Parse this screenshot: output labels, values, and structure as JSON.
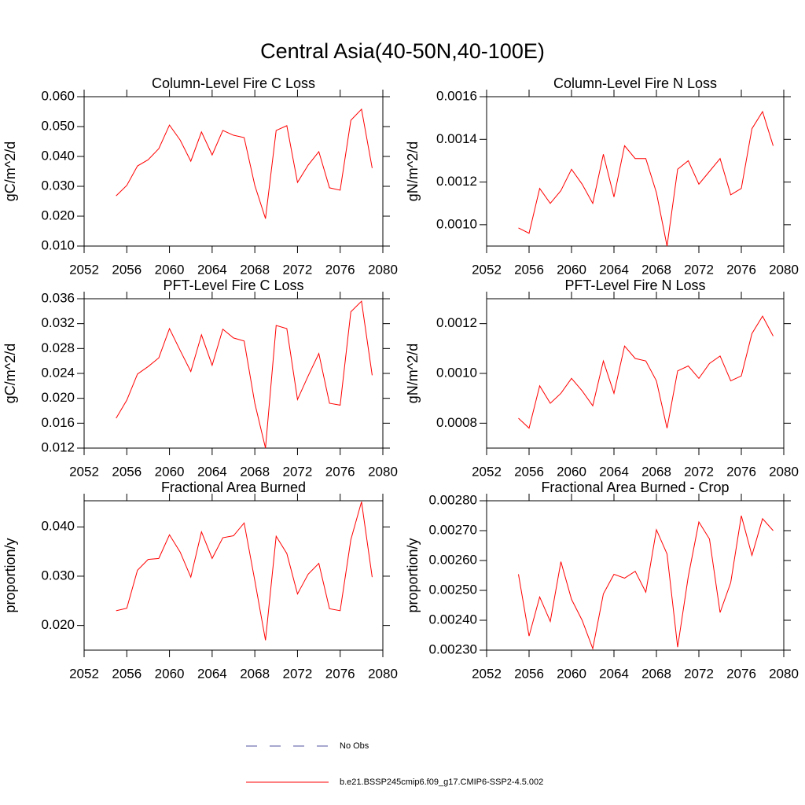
{
  "title": "Central Asia(40-50N,40-100E)",
  "legend": [
    {
      "label": "No Obs",
      "color": "#5050a0",
      "dash": true
    },
    {
      "label": "b.e21.BSSP245cmip6.f09_g17.CMIP6-SSP2-4.5.002",
      "color": "#ff0000",
      "dash": false
    }
  ],
  "chart_data": [
    {
      "type": "line",
      "title": "Column-Level Fire C Loss",
      "ylabel": "gC/m^2/d",
      "color": "#ff0000",
      "x": [
        2055,
        2056,
        2057,
        2058,
        2059,
        2060,
        2061,
        2062,
        2063,
        2064,
        2065,
        2066,
        2067,
        2068,
        2069,
        2070,
        2071,
        2072,
        2073,
        2074,
        2075,
        2076,
        2077,
        2078,
        2079
      ],
      "values": [
        0.0268,
        0.0303,
        0.0368,
        0.0389,
        0.0426,
        0.0505,
        0.0455,
        0.0384,
        0.0482,
        0.0405,
        0.0487,
        0.0471,
        0.0463,
        0.0303,
        0.0192,
        0.0487,
        0.0503,
        0.0313,
        0.0371,
        0.0416,
        0.0295,
        0.0287,
        0.0521,
        0.0558,
        0.0361
      ],
      "xlim": [
        2052,
        2080
      ],
      "xticks": [
        2052,
        2056,
        2060,
        2064,
        2068,
        2072,
        2076,
        2080
      ],
      "ylim": [
        0.01,
        0.06
      ],
      "yticks": [
        {
          "value": 0.01,
          "label": "0.010"
        },
        {
          "value": 0.02,
          "label": "0.020"
        },
        {
          "value": 0.03,
          "label": "0.030"
        },
        {
          "value": 0.04,
          "label": "0.040"
        },
        {
          "value": 0.05,
          "label": "0.050"
        },
        {
          "value": 0.06,
          "label": "0.060"
        }
      ]
    },
    {
      "type": "line",
      "title": "Column-Level Fire N Loss",
      "ylabel": "gN/m^2/d",
      "color": "#ff0000",
      "x": [
        2055,
        2056,
        2057,
        2058,
        2059,
        2060,
        2061,
        2062,
        2063,
        2064,
        2065,
        2066,
        2067,
        2068,
        2069,
        2070,
        2071,
        2072,
        2073,
        2074,
        2075,
        2076,
        2077,
        2078,
        2079
      ],
      "values": [
        0.000985,
        0.00096,
        0.00117,
        0.0011,
        0.00116,
        0.00126,
        0.00119,
        0.0011,
        0.00133,
        0.00113,
        0.00137,
        0.00131,
        0.00131,
        0.00115,
        0.0009,
        0.00126,
        0.0013,
        0.00119,
        0.00125,
        0.00131,
        0.00114,
        0.00117,
        0.00145,
        0.00153,
        0.00137
      ],
      "xlim": [
        2052,
        2080
      ],
      "xticks": [
        2052,
        2056,
        2060,
        2064,
        2068,
        2072,
        2076,
        2080
      ],
      "ylim": [
        0.0009,
        0.0016
      ],
      "yticks": [
        {
          "value": 0.001,
          "label": "0.0010"
        },
        {
          "value": 0.0012,
          "label": "0.0012"
        },
        {
          "value": 0.0014,
          "label": "0.0014"
        },
        {
          "value": 0.0016,
          "label": "0.0016"
        }
      ]
    },
    {
      "type": "line",
      "title": "PFT-Level Fire C Loss",
      "ylabel": "gC/m^2/d",
      "color": "#ff0000",
      "x": [
        2055,
        2056,
        2057,
        2058,
        2059,
        2060,
        2061,
        2062,
        2063,
        2064,
        2065,
        2066,
        2067,
        2068,
        2069,
        2070,
        2071,
        2072,
        2073,
        2074,
        2075,
        2076,
        2077,
        2078,
        2079
      ],
      "values": [
        0.0168,
        0.0197,
        0.0239,
        0.0251,
        0.0265,
        0.0312,
        0.0277,
        0.0243,
        0.0302,
        0.0253,
        0.0311,
        0.0297,
        0.0292,
        0.0192,
        0.012,
        0.0317,
        0.0312,
        0.0198,
        0.0236,
        0.0272,
        0.0192,
        0.0189,
        0.0339,
        0.0356,
        0.0237
      ],
      "xlim": [
        2052,
        2080
      ],
      "xticks": [
        2052,
        2056,
        2060,
        2064,
        2068,
        2072,
        2076,
        2080
      ],
      "ylim": [
        0.012,
        0.036
      ],
      "yticks": [
        0.012,
        0.016,
        {
          "value": 0.02,
          "label": "0.020"
        },
        0.024,
        0.028,
        0.032,
        0.036
      ]
    },
    {
      "type": "line",
      "title": "PFT-Level Fire N Loss",
      "ylabel": "gN/m^2/d",
      "color": "#ff0000",
      "x": [
        2055,
        2056,
        2057,
        2058,
        2059,
        2060,
        2061,
        2062,
        2063,
        2064,
        2065,
        2066,
        2067,
        2068,
        2069,
        2070,
        2071,
        2072,
        2073,
        2074,
        2075,
        2076,
        2077,
        2078,
        2079
      ],
      "values": [
        0.00082,
        0.00078,
        0.00095,
        0.00088,
        0.00092,
        0.00098,
        0.00093,
        0.00087,
        0.00105,
        0.00092,
        0.00111,
        0.00106,
        0.00105,
        0.00097,
        0.00078,
        0.00101,
        0.00103,
        0.00098,
        0.00104,
        0.00107,
        0.00097,
        0.00099,
        0.00116,
        0.00123,
        0.00115
      ],
      "xlim": [
        2052,
        2080
      ],
      "xticks": [
        2052,
        2056,
        2060,
        2064,
        2068,
        2072,
        2076,
        2080
      ],
      "ylim": [
        0.0007,
        0.0013
      ],
      "yticks": [
        {
          "value": 0.0008,
          "label": "0.0008"
        },
        {
          "value": 0.001,
          "label": "0.0010"
        },
        {
          "value": 0.0012,
          "label": "0.0012"
        }
      ]
    },
    {
      "type": "line",
      "title": "Fractional Area Burned",
      "ylabel": "proportion/y",
      "color": "#ff0000",
      "x": [
        2055,
        2056,
        2057,
        2058,
        2059,
        2060,
        2061,
        2062,
        2063,
        2064,
        2065,
        2066,
        2067,
        2068,
        2069,
        2070,
        2071,
        2072,
        2073,
        2074,
        2075,
        2076,
        2077,
        2078,
        2079
      ],
      "values": [
        0.023,
        0.0235,
        0.0312,
        0.0334,
        0.0336,
        0.0384,
        0.0349,
        0.0298,
        0.039,
        0.0336,
        0.0378,
        0.0382,
        0.0408,
        0.0291,
        0.017,
        0.0381,
        0.0346,
        0.0264,
        0.0304,
        0.0326,
        0.0234,
        0.023,
        0.0374,
        0.0451,
        0.0298
      ],
      "xlim": [
        2052,
        2080
      ],
      "xticks": [
        2052,
        2056,
        2060,
        2064,
        2068,
        2072,
        2076,
        2080
      ],
      "ylim": [
        0.015,
        0.0453
      ],
      "yticks": [
        {
          "value": 0.02,
          "label": "0.020"
        },
        {
          "value": 0.03,
          "label": "0.030"
        },
        {
          "value": 0.04,
          "label": "0.040"
        }
      ]
    },
    {
      "type": "line",
      "title": "Fractional Area Burned - Crop",
      "ylabel": "proportion/y",
      "color": "#ff0000",
      "x": [
        2055,
        2056,
        2057,
        2058,
        2059,
        2060,
        2061,
        2062,
        2063,
        2064,
        2065,
        2066,
        2067,
        2068,
        2069,
        2070,
        2071,
        2072,
        2073,
        2074,
        2075,
        2076,
        2077,
        2078,
        2079
      ],
      "values": [
        0.002554,
        0.002347,
        0.002478,
        0.002396,
        0.002596,
        0.00247,
        0.0024,
        0.002305,
        0.002488,
        0.002554,
        0.002541,
        0.002564,
        0.002494,
        0.002703,
        0.002622,
        0.00231,
        0.002546,
        0.002729,
        0.002672,
        0.002426,
        0.002526,
        0.00275,
        0.002617,
        0.00274,
        0.0027
      ],
      "xlim": [
        2052,
        2080
      ],
      "xticks": [
        2052,
        2056,
        2060,
        2064,
        2068,
        2072,
        2076,
        2080
      ],
      "ylim": [
        0.0023,
        0.0028
      ],
      "yticks": [
        {
          "value": 0.0023,
          "label": "0.00230"
        },
        {
          "value": 0.0024,
          "label": "0.00240"
        },
        {
          "value": 0.0025,
          "label": "0.00250"
        },
        {
          "value": 0.0026,
          "label": "0.00260"
        },
        {
          "value": 0.0027,
          "label": "0.00270"
        },
        {
          "value": 0.0028,
          "label": "0.00280"
        }
      ]
    }
  ]
}
